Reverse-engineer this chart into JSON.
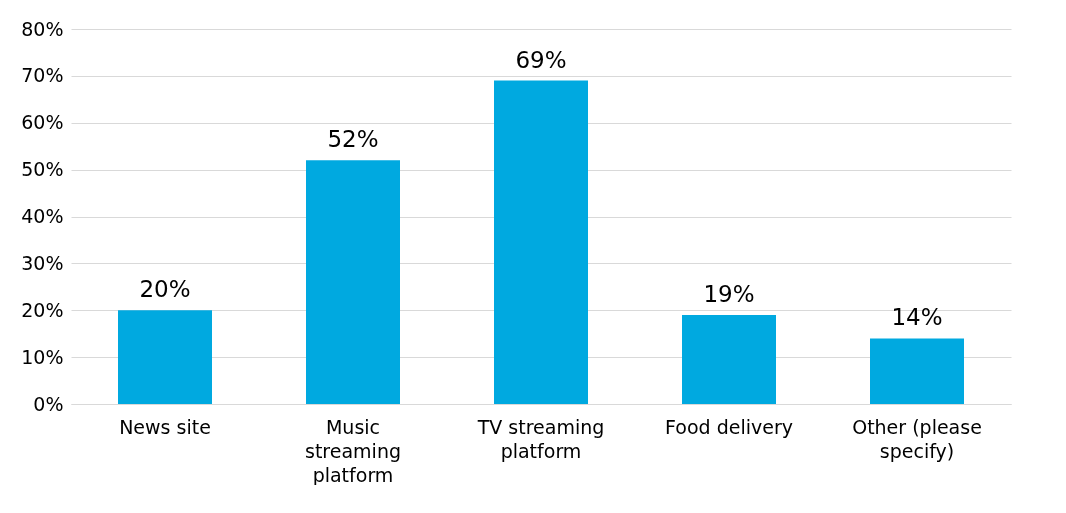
{
  "chart_data": {
    "type": "bar",
    "categories": [
      "News site",
      "Music streaming platform",
      "TV streaming platform",
      "Food delivery",
      "Other (please specify)"
    ],
    "values": [
      20,
      52,
      69,
      19,
      14
    ],
    "color": "#00a9e0",
    "data_labels": true,
    "value_labels": [
      "20%",
      "52%",
      "69%",
      "19%",
      "14%"
    ],
    "ylim": [
      0,
      80
    ],
    "yticks": [
      {
        "value": 0,
        "label": "0%"
      },
      {
        "value": 10,
        "label": "10%"
      },
      {
        "value": 20,
        "label": "20%"
      },
      {
        "value": 30,
        "label": "30%"
      },
      {
        "value": 40,
        "label": "40%"
      },
      {
        "value": 50,
        "label": "50%"
      },
      {
        "value": 60,
        "label": "60%"
      },
      {
        "value": 70,
        "label": "70%"
      },
      {
        "value": 80,
        "label": "80%"
      }
    ],
    "grid": "y"
  }
}
